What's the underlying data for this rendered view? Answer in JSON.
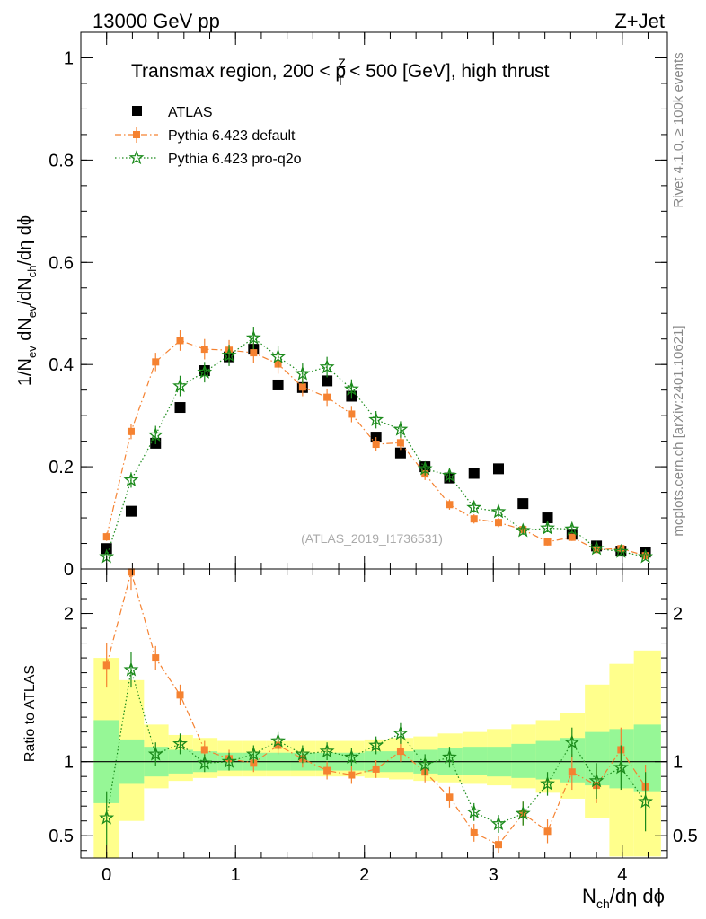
{
  "header": {
    "energy": "13000 GeV pp",
    "process": "Z+Jet"
  },
  "side_labels": {
    "rivet": "Rivet 4.1.0, ≥ 100k events",
    "mcplots": "mcplots.cern.ch [arXiv:2401.10621]"
  },
  "chart_data": [
    {
      "type": "scatter",
      "panel": "main",
      "title_parts": {
        "a": "Transmax region, 200 < p",
        "sup": "Z",
        "sub": "T",
        "b": " < 500 [GeV], high thrust"
      },
      "ylabel_parts": {
        "a": "1/N",
        "s1": "ev",
        "b": " dN",
        "s2": "ev",
        "c": "/dN",
        "s3": "ch",
        "d": "/dη dϕ"
      },
      "watermark": "(ATLAS_2019_I1736531)",
      "xlim": [
        -0.2,
        4.35
      ],
      "ylim": [
        0,
        1.05
      ],
      "yticks": [
        0,
        0.2,
        0.4,
        0.6,
        0.8,
        1
      ],
      "ytick_labels": [
        "0",
        "0.2",
        "0.4",
        "0.6",
        "0.8",
        "1"
      ],
      "x": [
        0,
        0.19,
        0.38,
        0.57,
        0.76,
        0.95,
        1.14,
        1.33,
        1.52,
        1.71,
        1.9,
        2.09,
        2.28,
        2.47,
        2.66,
        2.85,
        3.04,
        3.23,
        3.42,
        3.61,
        3.8,
        3.99,
        4.18
      ],
      "series": [
        {
          "name": "ATLAS",
          "legend": "ATLAS",
          "color": "#000000",
          "marker": "square",
          "values": [
            0.04,
            0.113,
            0.246,
            0.316,
            0.388,
            0.415,
            0.43,
            0.36,
            0.355,
            0.368,
            0.338,
            0.258,
            0.227,
            0.2,
            0.178,
            0.187,
            0.196,
            0.128,
            0.1,
            0.068,
            0.045,
            0.035,
            0.033
          ],
          "errors": [
            0.003,
            0.003,
            0.004,
            0.004,
            0.004,
            0.004,
            0.004,
            0.004,
            0.004,
            0.004,
            0.004,
            0.004,
            0.004,
            0.004,
            0.004,
            0.004,
            0.004,
            0.004,
            0.004,
            0.003,
            0.003,
            0.003,
            0.003
          ]
        },
        {
          "name": "Pythia 6.423 default",
          "legend": "Pythia 6.423 default",
          "color": "#f58231",
          "marker": "small-square",
          "line": "dashdot",
          "values": [
            0.063,
            0.269,
            0.405,
            0.447,
            0.43,
            0.428,
            0.423,
            0.401,
            0.356,
            0.336,
            0.303,
            0.244,
            0.247,
            0.186,
            0.126,
            0.098,
            0.091,
            0.077,
            0.053,
            0.062,
            0.038,
            0.04,
            0.026
          ],
          "errors": [
            0.008,
            0.015,
            0.018,
            0.02,
            0.02,
            0.02,
            0.02,
            0.019,
            0.018,
            0.017,
            0.016,
            0.014,
            0.014,
            0.012,
            0.01,
            0.009,
            0.009,
            0.008,
            0.007,
            0.007,
            0.006,
            0.006,
            0.005
          ]
        },
        {
          "name": "Pythia 6.423 pro-q2o",
          "legend": "Pythia 6.423 pro-q2o",
          "color": "#1a8a1a",
          "marker": "star",
          "line": "dotted",
          "values": [
            0.024,
            0.174,
            0.262,
            0.358,
            0.385,
            0.418,
            0.452,
            0.415,
            0.382,
            0.395,
            0.352,
            0.292,
            0.273,
            0.196,
            0.183,
            0.12,
            0.112,
            0.075,
            0.08,
            0.078,
            0.04,
            0.034,
            0.024
          ],
          "errors": [
            0.006,
            0.015,
            0.018,
            0.02,
            0.02,
            0.021,
            0.022,
            0.021,
            0.02,
            0.02,
            0.019,
            0.017,
            0.016,
            0.013,
            0.013,
            0.01,
            0.01,
            0.008,
            0.008,
            0.008,
            0.006,
            0.006,
            0.005
          ]
        }
      ]
    },
    {
      "type": "scatter",
      "panel": "ratio",
      "ylabel": "Ratio to ATLAS",
      "xlabel_parts": {
        "a": "N",
        "sub": "ch",
        "b": "/dη dϕ"
      },
      "xlim": [
        -0.2,
        4.35
      ],
      "ylim": [
        0.35,
        2.3
      ],
      "xticks": [
        0,
        1,
        2,
        3,
        4
      ],
      "xtick_labels": [
        "0",
        "1",
        "2",
        "3",
        "4"
      ],
      "yticks": [
        0.5,
        1,
        2
      ],
      "ytick_labels": [
        "0.5",
        "1",
        "2"
      ],
      "bin_edges": [
        -0.1,
        0.1,
        0.29,
        0.48,
        0.67,
        0.86,
        1.05,
        1.24,
        1.43,
        1.62,
        1.81,
        2.0,
        2.19,
        2.38,
        2.57,
        2.76,
        2.95,
        3.14,
        3.33,
        3.52,
        3.71,
        3.9,
        4.09,
        4.3
      ],
      "band_inner": [
        [
          0.72,
          1.28
        ],
        [
          0.85,
          1.15
        ],
        [
          0.9,
          1.1
        ],
        [
          0.92,
          1.08
        ],
        [
          0.93,
          1.07
        ],
        [
          0.94,
          1.06
        ],
        [
          0.94,
          1.06
        ],
        [
          0.94,
          1.06
        ],
        [
          0.94,
          1.06
        ],
        [
          0.94,
          1.06
        ],
        [
          0.94,
          1.06
        ],
        [
          0.93,
          1.07
        ],
        [
          0.93,
          1.07
        ],
        [
          0.92,
          1.08
        ],
        [
          0.91,
          1.09
        ],
        [
          0.91,
          1.1
        ],
        [
          0.9,
          1.1
        ],
        [
          0.89,
          1.12
        ],
        [
          0.88,
          1.14
        ],
        [
          0.86,
          1.16
        ],
        [
          0.84,
          1.2
        ],
        [
          0.82,
          1.22
        ],
        [
          0.8,
          1.25
        ]
      ],
      "band_outer": [
        [
          0.35,
          1.7
        ],
        [
          0.6,
          1.55
        ],
        [
          0.82,
          1.25
        ],
        [
          0.87,
          1.18
        ],
        [
          0.89,
          1.16
        ],
        [
          0.9,
          1.14
        ],
        [
          0.9,
          1.14
        ],
        [
          0.9,
          1.14
        ],
        [
          0.9,
          1.14
        ],
        [
          0.9,
          1.14
        ],
        [
          0.9,
          1.14
        ],
        [
          0.89,
          1.15
        ],
        [
          0.88,
          1.16
        ],
        [
          0.87,
          1.17
        ],
        [
          0.86,
          1.19
        ],
        [
          0.85,
          1.2
        ],
        [
          0.84,
          1.22
        ],
        [
          0.82,
          1.25
        ],
        [
          0.79,
          1.28
        ],
        [
          0.75,
          1.33
        ],
        [
          0.62,
          1.52
        ],
        [
          0.36,
          1.66
        ],
        [
          0.36,
          1.75
        ]
      ],
      "reference": 1,
      "x": [
        0,
        0.19,
        0.38,
        0.57,
        0.76,
        0.95,
        1.14,
        1.33,
        1.52,
        1.71,
        1.9,
        2.09,
        2.28,
        2.47,
        2.66,
        2.85,
        3.04,
        3.23,
        3.42,
        3.61,
        3.8,
        3.99,
        4.18
      ],
      "series": [
        {
          "name": "Pythia 6.423 default",
          "color": "#f58231",
          "marker": "small-square",
          "line": "dashdot",
          "values": [
            1.65,
            2.28,
            1.7,
            1.45,
            1.08,
            1.02,
            0.99,
            1.11,
            1.02,
            0.94,
            0.91,
            0.95,
            1.07,
            0.93,
            0.76,
            0.52,
            0.44,
            0.65,
            0.53,
            0.93,
            0.84,
            1.08,
            0.83
          ],
          "errors": [
            0.15,
            0.12,
            0.08,
            0.07,
            0.06,
            0.06,
            0.06,
            0.06,
            0.06,
            0.06,
            0.06,
            0.06,
            0.07,
            0.07,
            0.07,
            0.06,
            0.06,
            0.08,
            0.08,
            0.12,
            0.12,
            0.15,
            0.15
          ]
        },
        {
          "name": "Pythia 6.423 pro-q2o",
          "color": "#1a8a1a",
          "marker": "star",
          "line": "dotted",
          "values": [
            0.62,
            1.62,
            1.05,
            1.12,
            0.99,
            1.0,
            1.05,
            1.14,
            1.05,
            1.07,
            1.03,
            1.11,
            1.19,
            0.98,
            1.03,
            0.66,
            0.58,
            0.65,
            0.85,
            1.13,
            0.87,
            0.96,
            0.73
          ],
          "errors": [
            0.18,
            0.12,
            0.08,
            0.07,
            0.06,
            0.06,
            0.06,
            0.06,
            0.06,
            0.06,
            0.06,
            0.06,
            0.07,
            0.07,
            0.07,
            0.06,
            0.06,
            0.08,
            0.08,
            0.1,
            0.12,
            0.15,
            0.2
          ]
        }
      ]
    }
  ]
}
